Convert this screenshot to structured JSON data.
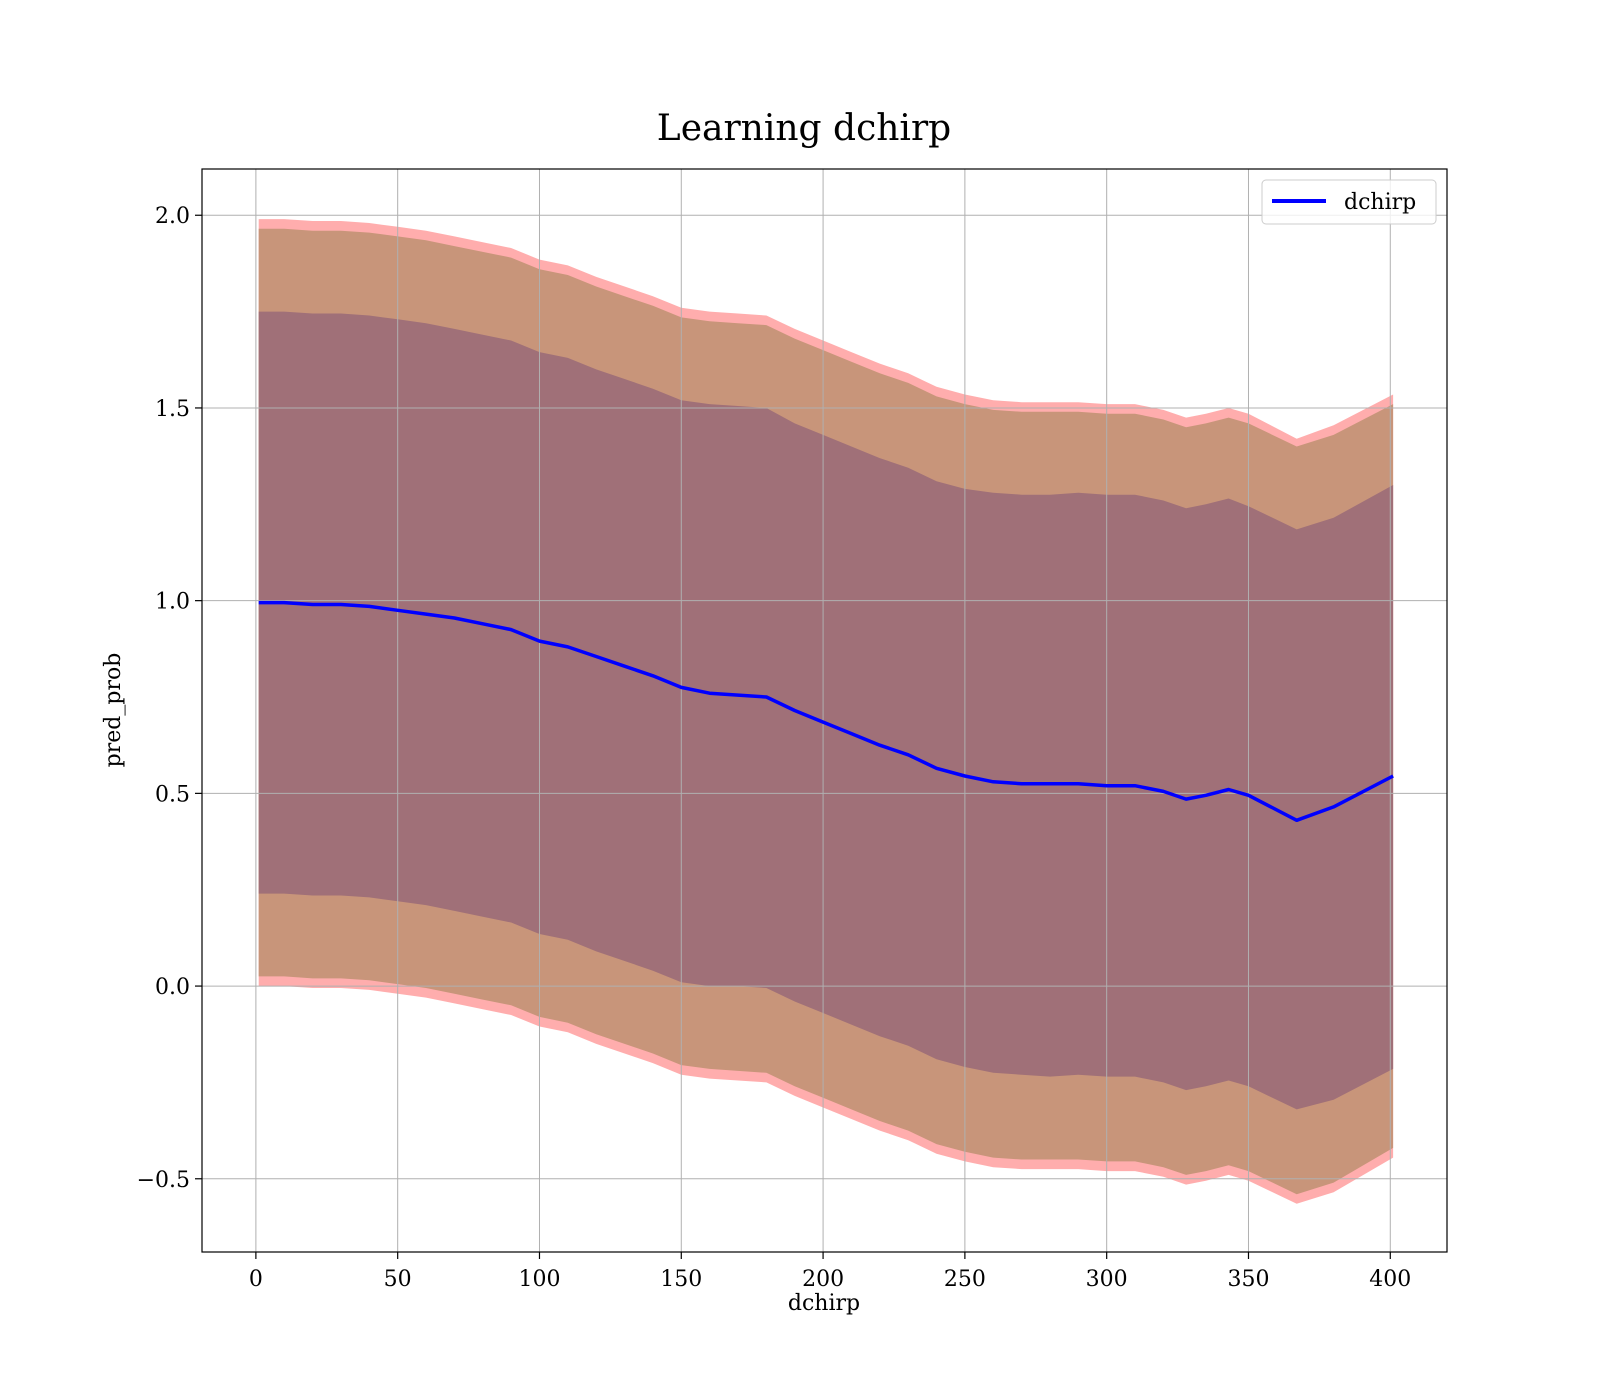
{
  "chart_data": {
    "type": "line",
    "title": "Learning dchirp",
    "xlabel": "dchirp",
    "ylabel": "pred_prob",
    "xlim": [
      -19,
      420
    ],
    "ylim": [
      -0.69,
      2.12
    ],
    "xticks": [
      0,
      50,
      100,
      150,
      200,
      250,
      300,
      350,
      400
    ],
    "yticks": [
      -0.5,
      0.0,
      0.5,
      1.0,
      1.5,
      2.0
    ],
    "ytick_labels": [
      "−0.5",
      "0.0",
      "0.5",
      "1.0",
      "1.5",
      "2.0"
    ],
    "xtick_labels": [
      "0",
      "50",
      "100",
      "150",
      "200",
      "250",
      "300",
      "350",
      "400"
    ],
    "grid": true,
    "legend_position": "upper right",
    "series": [
      {
        "name": "dchirp",
        "color": "#0000ff",
        "x": [
          1,
          10,
          20,
          30,
          40,
          50,
          60,
          70,
          80,
          90,
          100,
          110,
          120,
          130,
          140,
          150,
          160,
          170,
          180,
          190,
          200,
          210,
          220,
          230,
          240,
          250,
          260,
          270,
          280,
          290,
          300,
          310,
          320,
          328,
          335,
          343,
          350,
          367,
          380,
          401
        ],
        "y": [
          0.995,
          0.995,
          0.99,
          0.99,
          0.985,
          0.975,
          0.965,
          0.955,
          0.94,
          0.925,
          0.895,
          0.88,
          0.855,
          0.83,
          0.805,
          0.775,
          0.76,
          0.755,
          0.75,
          0.715,
          0.685,
          0.655,
          0.625,
          0.6,
          0.565,
          0.545,
          0.53,
          0.525,
          0.525,
          0.525,
          0.52,
          0.52,
          0.505,
          0.485,
          0.495,
          0.51,
          0.495,
          0.43,
          0.465,
          0.545
        ]
      }
    ],
    "bands": [
      {
        "label": "outer",
        "color": "#ff9999",
        "opacity": 0.8,
        "upper": [
          1.99,
          1.99,
          1.985,
          1.985,
          1.98,
          1.97,
          1.96,
          1.945,
          1.93,
          1.915,
          1.885,
          1.87,
          1.84,
          1.815,
          1.79,
          1.76,
          1.75,
          1.745,
          1.74,
          1.705,
          1.675,
          1.645,
          1.615,
          1.59,
          1.555,
          1.535,
          1.52,
          1.515,
          1.515,
          1.515,
          1.51,
          1.51,
          1.495,
          1.475,
          1.485,
          1.5,
          1.485,
          1.42,
          1.455,
          1.535
        ],
        "lower": [
          0.0,
          0.0,
          -0.005,
          -0.005,
          -0.01,
          -0.02,
          -0.03,
          -0.045,
          -0.06,
          -0.075,
          -0.105,
          -0.12,
          -0.15,
          -0.175,
          -0.2,
          -0.23,
          -0.24,
          -0.245,
          -0.25,
          -0.285,
          -0.315,
          -0.345,
          -0.375,
          -0.4,
          -0.435,
          -0.455,
          -0.47,
          -0.475,
          -0.475,
          -0.475,
          -0.48,
          -0.48,
          -0.495,
          -0.515,
          -0.505,
          -0.49,
          -0.505,
          -0.565,
          -0.535,
          -0.445
        ]
      },
      {
        "label": "middle",
        "color": "#c8957a",
        "opacity": 1.0,
        "upper": [
          1.965,
          1.965,
          1.96,
          1.96,
          1.955,
          1.945,
          1.935,
          1.92,
          1.905,
          1.89,
          1.86,
          1.845,
          1.815,
          1.79,
          1.765,
          1.735,
          1.725,
          1.72,
          1.715,
          1.68,
          1.65,
          1.62,
          1.59,
          1.565,
          1.53,
          1.51,
          1.495,
          1.49,
          1.49,
          1.49,
          1.485,
          1.485,
          1.47,
          1.45,
          1.46,
          1.475,
          1.46,
          1.4,
          1.43,
          1.51
        ],
        "lower": [
          0.025,
          0.025,
          0.02,
          0.02,
          0.015,
          0.005,
          -0.005,
          -0.02,
          -0.035,
          -0.05,
          -0.08,
          -0.095,
          -0.125,
          -0.15,
          -0.175,
          -0.205,
          -0.215,
          -0.22,
          -0.225,
          -0.26,
          -0.29,
          -0.32,
          -0.35,
          -0.375,
          -0.41,
          -0.43,
          -0.445,
          -0.45,
          -0.45,
          -0.45,
          -0.455,
          -0.455,
          -0.47,
          -0.49,
          -0.48,
          -0.465,
          -0.48,
          -0.54,
          -0.51,
          -0.42
        ]
      },
      {
        "label": "inner",
        "color": "#a07078",
        "opacity": 1.0,
        "upper": [
          1.75,
          1.75,
          1.745,
          1.745,
          1.74,
          1.73,
          1.72,
          1.705,
          1.69,
          1.675,
          1.645,
          1.63,
          1.6,
          1.575,
          1.55,
          1.52,
          1.51,
          1.505,
          1.5,
          1.46,
          1.43,
          1.4,
          1.37,
          1.345,
          1.31,
          1.29,
          1.28,
          1.275,
          1.275,
          1.28,
          1.275,
          1.275,
          1.26,
          1.24,
          1.25,
          1.265,
          1.245,
          1.185,
          1.215,
          1.3
        ],
        "lower": [
          0.24,
          0.24,
          0.235,
          0.235,
          0.23,
          0.22,
          0.21,
          0.195,
          0.18,
          0.165,
          0.135,
          0.12,
          0.09,
          0.065,
          0.04,
          0.01,
          0.0,
          0.0,
          -0.005,
          -0.04,
          -0.07,
          -0.1,
          -0.13,
          -0.155,
          -0.19,
          -0.21,
          -0.225,
          -0.23,
          -0.235,
          -0.23,
          -0.235,
          -0.235,
          -0.25,
          -0.27,
          -0.26,
          -0.245,
          -0.26,
          -0.32,
          -0.295,
          -0.215
        ]
      }
    ]
  }
}
